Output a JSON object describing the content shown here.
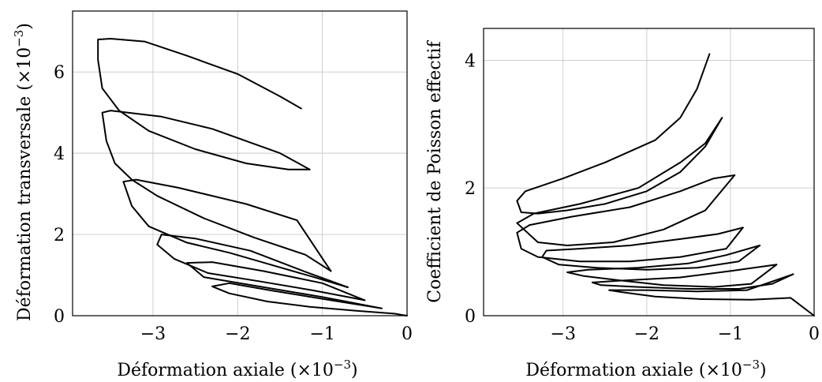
{
  "chart_data": [
    {
      "type": "line",
      "xlabel": "Déformation axiale",
      "xlabel_unit": "(×10",
      "xlabel_exp": "−3",
      "xlabel_close": ")",
      "ylabel": "Déformation transversale",
      "ylabel_unit": "(×10",
      "ylabel_exp": "−3",
      "ylabel_close": ")",
      "xlim": [
        -3.95,
        0
      ],
      "ylim": [
        0,
        7.5
      ],
      "grid": true,
      "xticks": [
        -3,
        -2,
        -1,
        0
      ],
      "xtick_labels": [
        "−3",
        "−2",
        "−1",
        "0"
      ],
      "yticks": [
        0,
        2,
        4,
        6
      ],
      "ytick_labels": [
        "0",
        "2",
        "4",
        "6"
      ],
      "series": [
        {
          "points": [
            [
              0,
              0
            ],
            [
              -0.15,
              0.05
            ],
            [
              -0.6,
              0.12
            ],
            [
              -1.15,
              0.22
            ],
            [
              -1.65,
              0.35
            ],
            [
              -2.1,
              0.55
            ],
            [
              -2.3,
              0.72
            ],
            [
              -2.1,
              0.8
            ],
            [
              -1.6,
              0.62
            ],
            [
              -0.9,
              0.38
            ],
            [
              -0.3,
              0.18
            ]
          ]
        },
        {
          "points": [
            [
              -0.3,
              0.18
            ],
            [
              -1.0,
              0.46
            ],
            [
              -1.75,
              0.72
            ],
            [
              -2.4,
              0.95
            ],
            [
              -2.6,
              1.3
            ],
            [
              -2.3,
              1.32
            ],
            [
              -1.7,
              1.1
            ],
            [
              -1.0,
              0.8
            ],
            [
              -0.5,
              0.38
            ]
          ]
        },
        {
          "points": [
            [
              -0.5,
              0.38
            ],
            [
              -1.1,
              0.62
            ],
            [
              -1.75,
              0.85
            ],
            [
              -2.35,
              1.05
            ],
            [
              -2.75,
              1.4
            ],
            [
              -2.95,
              1.75
            ],
            [
              -2.9,
              2.0
            ],
            [
              -2.5,
              1.9
            ],
            [
              -1.85,
              1.6
            ],
            [
              -1.2,
              1.08
            ],
            [
              -0.7,
              0.7
            ]
          ]
        },
        {
          "points": [
            [
              -0.7,
              0.7
            ],
            [
              -1.1,
              0.95
            ],
            [
              -1.6,
              1.25
            ],
            [
              -2.1,
              1.55
            ],
            [
              -2.6,
              1.8
            ],
            [
              -3.05,
              2.2
            ],
            [
              -3.25,
              2.7
            ],
            [
              -3.35,
              3.3
            ],
            [
              -3.2,
              3.35
            ],
            [
              -2.7,
              3.15
            ],
            [
              -1.9,
              2.75
            ],
            [
              -1.3,
              2.35
            ],
            [
              -0.9,
              1.1
            ]
          ]
        },
        {
          "points": [
            [
              -0.9,
              1.1
            ],
            [
              -1.2,
              1.5
            ],
            [
              -1.8,
              1.92
            ],
            [
              -2.4,
              2.4
            ],
            [
              -2.95,
              2.95
            ],
            [
              -3.25,
              3.35
            ],
            [
              -3.45,
              3.75
            ],
            [
              -3.55,
              4.3
            ],
            [
              -3.6,
              5.0
            ],
            [
              -3.5,
              5.05
            ],
            [
              -2.9,
              4.9
            ],
            [
              -2.3,
              4.6
            ],
            [
              -1.5,
              4.0
            ],
            [
              -1.15,
              3.6
            ]
          ]
        },
        {
          "points": [
            [
              -1.15,
              3.6
            ],
            [
              -1.4,
              3.6
            ],
            [
              -1.9,
              3.75
            ],
            [
              -2.5,
              4.1
            ],
            [
              -3.05,
              4.55
            ],
            [
              -3.4,
              5.05
            ],
            [
              -3.6,
              5.6
            ],
            [
              -3.65,
              6.3
            ],
            [
              -3.65,
              6.8
            ],
            [
              -3.5,
              6.82
            ],
            [
              -3.1,
              6.75
            ],
            [
              -2.6,
              6.4
            ],
            [
              -2.0,
              5.95
            ],
            [
              -1.5,
              5.4
            ],
            [
              -1.25,
              5.1
            ]
          ]
        }
      ]
    },
    {
      "type": "line",
      "xlabel": "Déformation axiale",
      "xlabel_unit": "(×10",
      "xlabel_exp": "−3",
      "xlabel_close": ")",
      "ylabel": "Coefficient de Poisson effectif",
      "xlim": [
        -3.95,
        0
      ],
      "ylim": [
        0,
        4.5
      ],
      "grid": true,
      "xticks": [
        -3,
        -2,
        -1,
        0
      ],
      "xtick_labels": [
        "−3",
        "−2",
        "−1",
        "0"
      ],
      "yticks": [
        0,
        2,
        4
      ],
      "ytick_labels": [
        "0",
        "2",
        "4"
      ],
      "series": [
        {
          "points": [
            [
              0,
              0
            ],
            [
              -0.28,
              0.28
            ],
            [
              -0.75,
              0.25
            ],
            [
              -1.35,
              0.26
            ],
            [
              -1.9,
              0.3
            ],
            [
              -2.3,
              0.37
            ],
            [
              -2.45,
              0.4
            ],
            [
              -2.0,
              0.4
            ],
            [
              -1.4,
              0.38
            ],
            [
              -0.8,
              0.4
            ],
            [
              -0.25,
              0.65
            ]
          ]
        },
        {
          "points": [
            [
              -0.25,
              0.65
            ],
            [
              -0.5,
              0.5
            ],
            [
              -0.9,
              0.42
            ],
            [
              -1.5,
              0.42
            ],
            [
              -2.1,
              0.45
            ],
            [
              -2.55,
              0.48
            ],
            [
              -2.65,
              0.52
            ],
            [
              -2.3,
              0.55
            ],
            [
              -1.6,
              0.6
            ],
            [
              -1.0,
              0.7
            ],
            [
              -0.45,
              0.8
            ]
          ]
        },
        {
          "points": [
            [
              -0.45,
              0.8
            ],
            [
              -0.75,
              0.5
            ],
            [
              -1.2,
              0.45
            ],
            [
              -1.8,
              0.48
            ],
            [
              -2.3,
              0.55
            ],
            [
              -2.75,
              0.62
            ],
            [
              -2.95,
              0.68
            ],
            [
              -2.7,
              0.72
            ],
            [
              -2.1,
              0.75
            ],
            [
              -1.5,
              0.82
            ],
            [
              -1.05,
              0.95
            ],
            [
              -0.65,
              1.1
            ]
          ]
        },
        {
          "points": [
            [
              -0.65,
              1.1
            ],
            [
              -0.9,
              0.85
            ],
            [
              -1.4,
              0.75
            ],
            [
              -2.0,
              0.72
            ],
            [
              -2.6,
              0.75
            ],
            [
              -3.05,
              0.8
            ],
            [
              -3.25,
              0.92
            ],
            [
              -3.2,
              1.02
            ],
            [
              -2.8,
              1.05
            ],
            [
              -2.2,
              1.1
            ],
            [
              -1.6,
              1.2
            ],
            [
              -1.15,
              1.28
            ],
            [
              -0.85,
              1.38
            ]
          ]
        },
        {
          "points": [
            [
              -0.85,
              1.38
            ],
            [
              -1.05,
              1.05
            ],
            [
              -1.6,
              0.92
            ],
            [
              -2.2,
              0.85
            ],
            [
              -2.8,
              0.85
            ],
            [
              -3.3,
              0.92
            ],
            [
              -3.5,
              1.05
            ],
            [
              -3.55,
              1.3
            ],
            [
              -3.4,
              1.42
            ],
            [
              -2.9,
              1.55
            ],
            [
              -2.2,
              1.7
            ],
            [
              -1.6,
              1.95
            ],
            [
              -1.2,
              2.15
            ],
            [
              -0.95,
              2.2
            ]
          ]
        },
        {
          "points": [
            [
              -0.95,
              2.2
            ],
            [
              -1.3,
              1.65
            ],
            [
              -1.8,
              1.35
            ],
            [
              -2.4,
              1.15
            ],
            [
              -2.95,
              1.1
            ],
            [
              -3.3,
              1.15
            ],
            [
              -3.55,
              1.45
            ],
            [
              -3.35,
              1.6
            ],
            [
              -2.8,
              1.75
            ],
            [
              -2.1,
              2.0
            ],
            [
              -1.6,
              2.4
            ],
            [
              -1.3,
              2.7
            ],
            [
              -1.1,
              3.1
            ]
          ]
        },
        {
          "points": [
            [
              -1.1,
              3.1
            ],
            [
              -1.3,
              2.65
            ],
            [
              -1.6,
              2.25
            ],
            [
              -2.0,
              1.95
            ],
            [
              -2.5,
              1.75
            ],
            [
              -2.95,
              1.65
            ],
            [
              -3.3,
              1.6
            ],
            [
              -3.5,
              1.62
            ],
            [
              -3.55,
              1.8
            ],
            [
              -3.45,
              1.95
            ],
            [
              -3.0,
              2.15
            ],
            [
              -2.5,
              2.4
            ],
            [
              -1.9,
              2.75
            ],
            [
              -1.6,
              3.1
            ],
            [
              -1.4,
              3.55
            ],
            [
              -1.25,
              4.1
            ]
          ]
        }
      ]
    }
  ]
}
